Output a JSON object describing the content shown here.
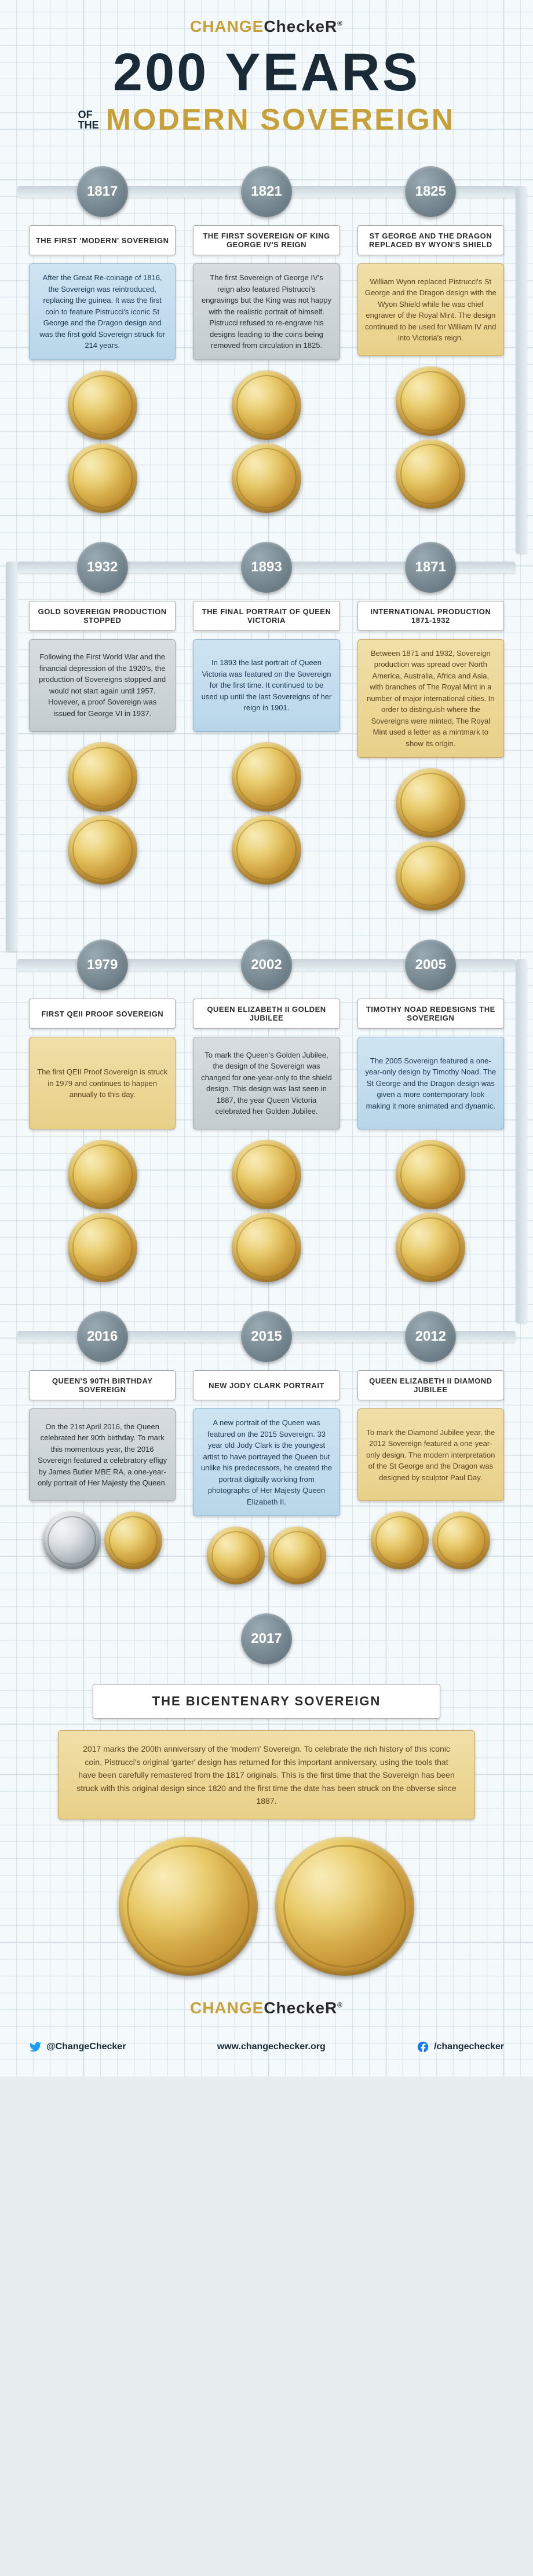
{
  "brand": {
    "part1": "CHANGE",
    "part2": "CheckeR"
  },
  "headline": {
    "main": "200 YEARS",
    "ofthe_1": "OF",
    "ofthe_2": "THE",
    "sub": "MODERN SOVEREIGN"
  },
  "rows": [
    {
      "flow": "right",
      "cols": [
        {
          "year": "1817",
          "title": "THE FIRST 'MODERN' SOVEREIGN",
          "color": "blue",
          "desc": "After the Great Re-coinage of 1816, the Sovereign was reintroduced, replacing the guinea. It was the first coin to feature Pistrucci's iconic St George and the Dragon design and was the first gold Sovereign struck for 214 years."
        },
        {
          "year": "1821",
          "title": "THE FIRST SOVEREIGN OF KING GEORGE IV'S REIGN",
          "color": "grey",
          "desc": "The first Sovereign of George IV's reign also featured Pistrucci's engravings but the King was not happy with the realistic portrait of himself. Pistrucci refused to re-engrave his designs leading to the coins being removed from circulation in 1825."
        },
        {
          "year": "1825",
          "title": "ST GEORGE AND THE DRAGON REPLACED BY WYON'S SHIELD",
          "color": "gold",
          "desc": "William Wyon replaced Pistrucci's St George and the Dragon design with the Wyon Shield while he was chief engraver of the Royal Mint. The design continued to be used for William IV and into Victoria's reign."
        }
      ]
    },
    {
      "flow": "left",
      "cols": [
        {
          "year": "1932",
          "title": "GOLD SOVEREIGN PRODUCTION STOPPED",
          "color": "grey",
          "desc": "Following the First World War and the financial depression of the 1920's, the production of Sovereigns stopped and would not start again until 1957. However, a proof Sovereign was issued for George VI in 1937."
        },
        {
          "year": "1893",
          "title": "THE FINAL PORTRAIT OF QUEEN VICTORIA",
          "color": "blue",
          "desc": "In 1893 the last portrait of Queen Victoria was featured on the Sovereign for the first time. It continued to be used up until the last Sovereigns of her reign in 1901."
        },
        {
          "year": "1871",
          "title": "INTERNATIONAL PRODUCTION 1871-1932",
          "color": "gold",
          "desc": "Between 1871 and 1932, Sovereign production was spread over North America, Australia, Africa and Asia, with branches of The Royal Mint in a number of major international cities. In order to distinguish where the Sovereigns were minted, The Royal Mint used a letter as a mintmark to show its origin."
        }
      ]
    },
    {
      "flow": "right",
      "cols": [
        {
          "year": "1979",
          "title": "FIRST QEII PROOF SOVEREIGN",
          "color": "gold",
          "desc": "The first QEII Proof Sovereign is struck in 1979 and continues to happen annually to this day."
        },
        {
          "year": "2002",
          "title": "QUEEN ELIZABETH II GOLDEN JUBILEE",
          "color": "grey",
          "desc": "To mark the Queen's Golden Jubilee, the design of the Sovereign was changed for one-year-only to the shield design. This design was last seen in 1887, the year Queen Victoria celebrated her Golden Jubilee."
        },
        {
          "year": "2005",
          "title": "TIMOTHY NOAD REDESIGNS THE SOVEREIGN",
          "color": "blue",
          "desc": "The 2005 Sovereign featured a one-year-only design by Timothy Noad. The St George and the Dragon design was given a more contemporary look making it more animated and dynamic."
        }
      ]
    },
    {
      "flow": "left",
      "cols": [
        {
          "year": "2016",
          "title": "QUEEN'S 90TH BIRTHDAY SOVEREIGN",
          "color": "grey",
          "desc": "On the 21st April 2016, the Queen celebrated her 90th birthday. To mark this momentous year, the 2016 Sovereign featured a celebratory effigy by James Butler MBE RA, a one-year-only portrait of Her Majesty the Queen."
        },
        {
          "year": "2015",
          "title": "NEW JODY CLARK PORTRAIT",
          "color": "blue",
          "desc": "A new portrait of the Queen was featured on the 2015 Sovereign. 33 year old Jody Clark is the youngest artist to have portrayed the Queen but unlike his predecessors, he created the portrait digitally working from photographs of Her Majesty Queen Elizabeth II."
        },
        {
          "year": "2012",
          "title": "QUEEN ELIZABETH II DIAMOND JUBILEE",
          "color": "gold",
          "desc": "To mark the Diamond Jubilee year, the 2012 Sovereign featured a one-year-only design. The modern interpretation of the St George and the Dragon was designed by sculptor Paul Day."
        }
      ]
    }
  ],
  "final": {
    "year": "2017",
    "title": "THE BICENTENARY SOVEREIGN",
    "color": "gold",
    "desc": "2017 marks the 200th anniversary of the 'modern' Sovereign. To celebrate the rich history of this iconic coin, Pistrucci's original 'garter' design has returned for this important anniversary, using the tools that have been carefully remastered from the 1817 originals. This is the first time that the Sovereign has been struck with this original design since 1820 and the first time the date has been struck on the obverse since 1887."
  },
  "footer": {
    "twitter": "@ChangeChecker",
    "url": "www.changechecker.org",
    "facebook": "/changechecker"
  },
  "colors": {
    "navy": "#1a2a36",
    "gold": "#c8a03a"
  }
}
